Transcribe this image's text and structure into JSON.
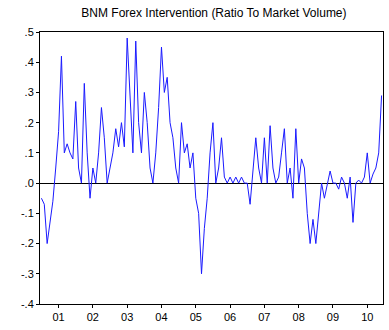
{
  "chart_data": {
    "type": "line",
    "title": "BNM Forex Intervention (Ratio To Market Volume)",
    "categories": [
      null,
      null,
      null,
      null,
      null,
      null,
      "01",
      null,
      null,
      null,
      null,
      null,
      null,
      null,
      null,
      null,
      null,
      null,
      "02",
      null,
      null,
      null,
      null,
      null,
      null,
      null,
      null,
      null,
      null,
      null,
      "03",
      null,
      null,
      null,
      null,
      null,
      null,
      null,
      null,
      null,
      null,
      null,
      "04",
      null,
      null,
      null,
      null,
      null,
      null,
      null,
      null,
      null,
      null,
      null,
      "05",
      null,
      null,
      null,
      null,
      null,
      null,
      null,
      null,
      null,
      null,
      null,
      "06",
      null,
      null,
      null,
      null,
      null,
      null,
      null,
      null,
      null,
      null,
      null,
      "07",
      null,
      null,
      null,
      null,
      null,
      null,
      null,
      null,
      null,
      null,
      null,
      "08",
      null,
      null,
      null,
      null,
      null,
      null,
      null,
      null,
      null,
      null,
      null,
      "09",
      null,
      null,
      null,
      null,
      null,
      null,
      null,
      null,
      null,
      null,
      null,
      "10",
      null,
      null,
      null,
      null,
      null
    ],
    "values": [
      -0.05,
      -0.07,
      -0.2,
      -0.12,
      -0.06,
      0.05,
      0.17,
      0.42,
      0.1,
      0.13,
      0.1,
      0.08,
      0.27,
      0.05,
      0.0,
      0.33,
      0.1,
      -0.05,
      0.05,
      0.0,
      0.1,
      0.25,
      0.15,
      0.0,
      0.05,
      0.1,
      0.18,
      0.12,
      0.2,
      0.12,
      0.48,
      0.3,
      0.1,
      0.47,
      0.2,
      0.1,
      0.3,
      0.2,
      0.05,
      0.0,
      0.1,
      0.25,
      0.45,
      0.3,
      0.35,
      0.2,
      0.15,
      0.05,
      0.0,
      0.2,
      0.1,
      0.13,
      0.05,
      0.1,
      -0.05,
      -0.1,
      -0.3,
      -0.15,
      -0.05,
      0.1,
      0.2,
      0.0,
      0.05,
      0.15,
      0.02,
      0.0,
      0.02,
      0.0,
      0.02,
      0.0,
      0.02,
      0.0,
      0.0,
      -0.07,
      0.05,
      0.15,
      0.05,
      0.0,
      0.15,
      0.0,
      0.19,
      0.05,
      0.0,
      0.02,
      0.1,
      0.18,
      0.0,
      0.05,
      -0.05,
      0.18,
      0.0,
      0.08,
      0.05,
      -0.1,
      -0.2,
      -0.12,
      -0.2,
      -0.1,
      0.0,
      -0.05,
      0.0,
      0.04,
      0.0,
      0.0,
      -0.02,
      0.02,
      0.0,
      -0.05,
      0.02,
      -0.13,
      0.0,
      0.01,
      0.0,
      0.02,
      0.1,
      0.0,
      0.03,
      0.05,
      0.1,
      0.29
    ],
    "color": "#1a1aff",
    "ylim": [
      -0.4,
      0.5
    ],
    "yticks": [
      {
        "value": -0.4,
        "label": "-.4"
      },
      {
        "value": -0.3,
        "label": "-.3"
      },
      {
        "value": -0.2,
        "label": "-.2"
      },
      {
        "value": -0.1,
        "label": "-.1"
      },
      {
        "value": 0,
        "label": ".0"
      },
      {
        "value": 0.1,
        "label": ".1"
      },
      {
        "value": 0.2,
        "label": ".2"
      },
      {
        "value": 0.3,
        "label": ".3"
      },
      {
        "value": 0.4,
        "label": ".4"
      },
      {
        "value": 0.5,
        "label": ".5"
      }
    ],
    "grid": false
  }
}
